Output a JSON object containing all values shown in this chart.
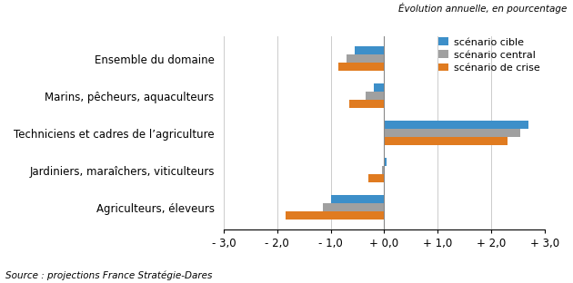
{
  "categories": [
    "Ensemble du domaine",
    "Marins, pêcheurs, aquaculteurs",
    "Techniciens et cadres de l’agriculture",
    "Jardiniers, maraîchers, viticulteurs",
    "Agriculteurs, éleveurs"
  ],
  "scenarios": {
    "cible": [
      -0.55,
      -0.2,
      2.7,
      0.05,
      -1.0
    ],
    "central": [
      -0.7,
      -0.35,
      2.55,
      -0.05,
      -1.15
    ],
    "crise": [
      -0.85,
      -0.65,
      2.3,
      -0.3,
      -1.85
    ]
  },
  "colors": {
    "cible": "#3d8fc9",
    "central": "#a0a0a0",
    "crise": "#e07b20"
  },
  "legend_labels": {
    "cible": "scénario cible",
    "central": "scénario central",
    "crise": "scénario de crise"
  },
  "suptitle": "Évolution annuelle, en pourcentage",
  "source": "Source : projections France Stratégie-Dares",
  "xlim": [
    -3.0,
    3.0
  ],
  "xticks": [
    -3.0,
    -2.0,
    -1.0,
    0.0,
    1.0,
    2.0,
    3.0
  ],
  "xtick_labels": [
    "- 3,0",
    "- 2,0",
    "- 1,0",
    "+ 0,0",
    "+ 1,0",
    "+ 2,0",
    "+ 3,0"
  ],
  "bar_height": 0.22,
  "figsize": [
    6.3,
    3.12
  ],
  "dpi": 100
}
